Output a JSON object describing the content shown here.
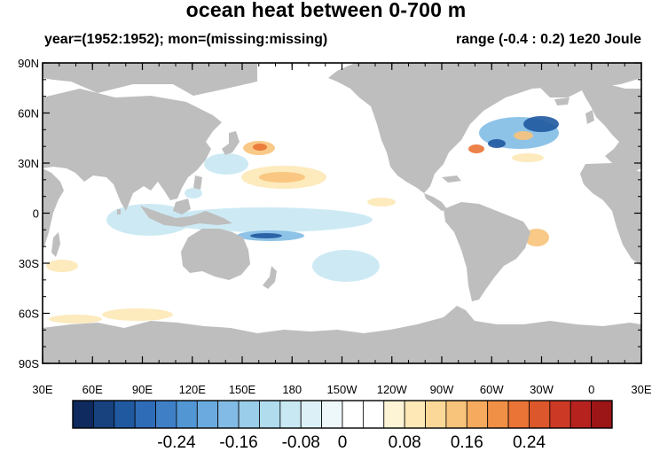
{
  "title": "ocean heat between 0-700 m",
  "subtitle_left": "year=(1952:1952); mon=(missing:missing)",
  "subtitle_right": "range (-0.4 : 0.2) 1e20 Joule",
  "lat_labels": [
    "90N",
    "60N",
    "30N",
    "0",
    "30S",
    "60S",
    "90S"
  ],
  "lon_labels": [
    "30E",
    "60E",
    "90E",
    "120E",
    "150E",
    "180",
    "150W",
    "120W",
    "90W",
    "60W",
    "30W",
    "0",
    "30E"
  ],
  "colorbar": {
    "labels": [
      "-0.24",
      "-0.16",
      "-0.08",
      "0",
      "0.08",
      "0.16",
      "0.24"
    ],
    "colors": [
      "#0e2a5e",
      "#17427e",
      "#2059a0",
      "#2f6cb8",
      "#3f7fc6",
      "#5296d3",
      "#6aaade",
      "#82bce6",
      "#9acde9",
      "#b1dcee",
      "#c8e8f3",
      "#dcf1f7",
      "#eef8fb",
      "#ffffff",
      "#ffffff",
      "#fdf4d6",
      "#fde8b6",
      "#fbd897",
      "#f8c37a",
      "#f5aa5e",
      "#f09046",
      "#e97435",
      "#dc572b",
      "#cc3a25",
      "#b6231f",
      "#9c1517"
    ]
  },
  "colors": {
    "land": "#bebebe",
    "ocean": "#ffffff",
    "warm_strong": "#e97435",
    "warm": "#f8c37a",
    "warm_light": "#fde8b6",
    "cool_strong": "#2059a0",
    "cool": "#82bce6",
    "cool_light": "#c8e8f3"
  }
}
